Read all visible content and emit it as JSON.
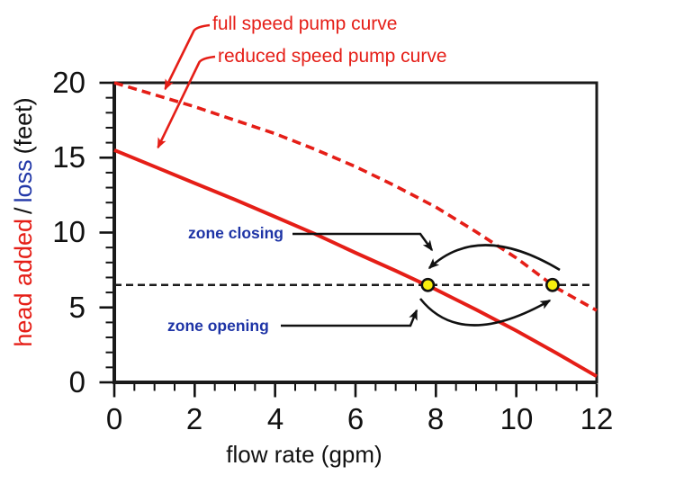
{
  "chart_data": {
    "type": "line",
    "xlabel": "flow rate (gpm)",
    "ylabel": {
      "head_added": "head added",
      "separator": "/",
      "loss": "loss",
      "units": "(feet)"
    },
    "xlim": [
      0,
      12
    ],
    "ylim": [
      0,
      20
    ],
    "x_major_ticks": [
      0,
      2,
      4,
      6,
      8,
      10,
      12
    ],
    "x_minor_step": 0.5,
    "y_major_ticks": [
      0,
      5,
      10,
      15,
      20
    ],
    "y_minor_step": 1,
    "grid": false,
    "legend": {
      "entries": [
        "full speed pump curve",
        "reduced speed pump curve"
      ],
      "color": "#e51e17",
      "position": "above-plot-left"
    },
    "series": [
      {
        "name": "full speed pump curve",
        "style": "dashed",
        "color": "#e51e17",
        "x": [
          0,
          1,
          2,
          3,
          4,
          5,
          6,
          7,
          8,
          9,
          10,
          11,
          12
        ],
        "y": [
          20,
          19.2,
          18.4,
          17.5,
          16.6,
          15.55,
          14.4,
          13.1,
          11.7,
          10.05,
          8.3,
          6.3,
          4.8
        ]
      },
      {
        "name": "reduced speed pump curve",
        "style": "solid",
        "color": "#e51e17",
        "x": [
          0,
          1,
          2,
          3,
          4,
          5,
          6,
          7,
          8,
          9,
          10,
          11,
          12
        ],
        "y": [
          15.5,
          14.4,
          13.3,
          12.2,
          11.05,
          9.9,
          8.65,
          7.45,
          6.2,
          4.85,
          3.45,
          1.95,
          0.4
        ]
      }
    ],
    "system_head_line": {
      "y": 6.5,
      "style": "dashed",
      "color": "#1c1c1c"
    },
    "operating_points": [
      {
        "name": "reduced speed operating point",
        "x": 7.8,
        "y": 6.5,
        "fill": "#f9ee0e"
      },
      {
        "name": "full speed operating point",
        "x": 10.9,
        "y": 6.5,
        "fill": "#f9ee0e"
      }
    ],
    "annotations": [
      {
        "label": "zone closing",
        "color": "#1e34a6"
      },
      {
        "label": "zone opening",
        "color": "#1e34a6"
      }
    ]
  }
}
